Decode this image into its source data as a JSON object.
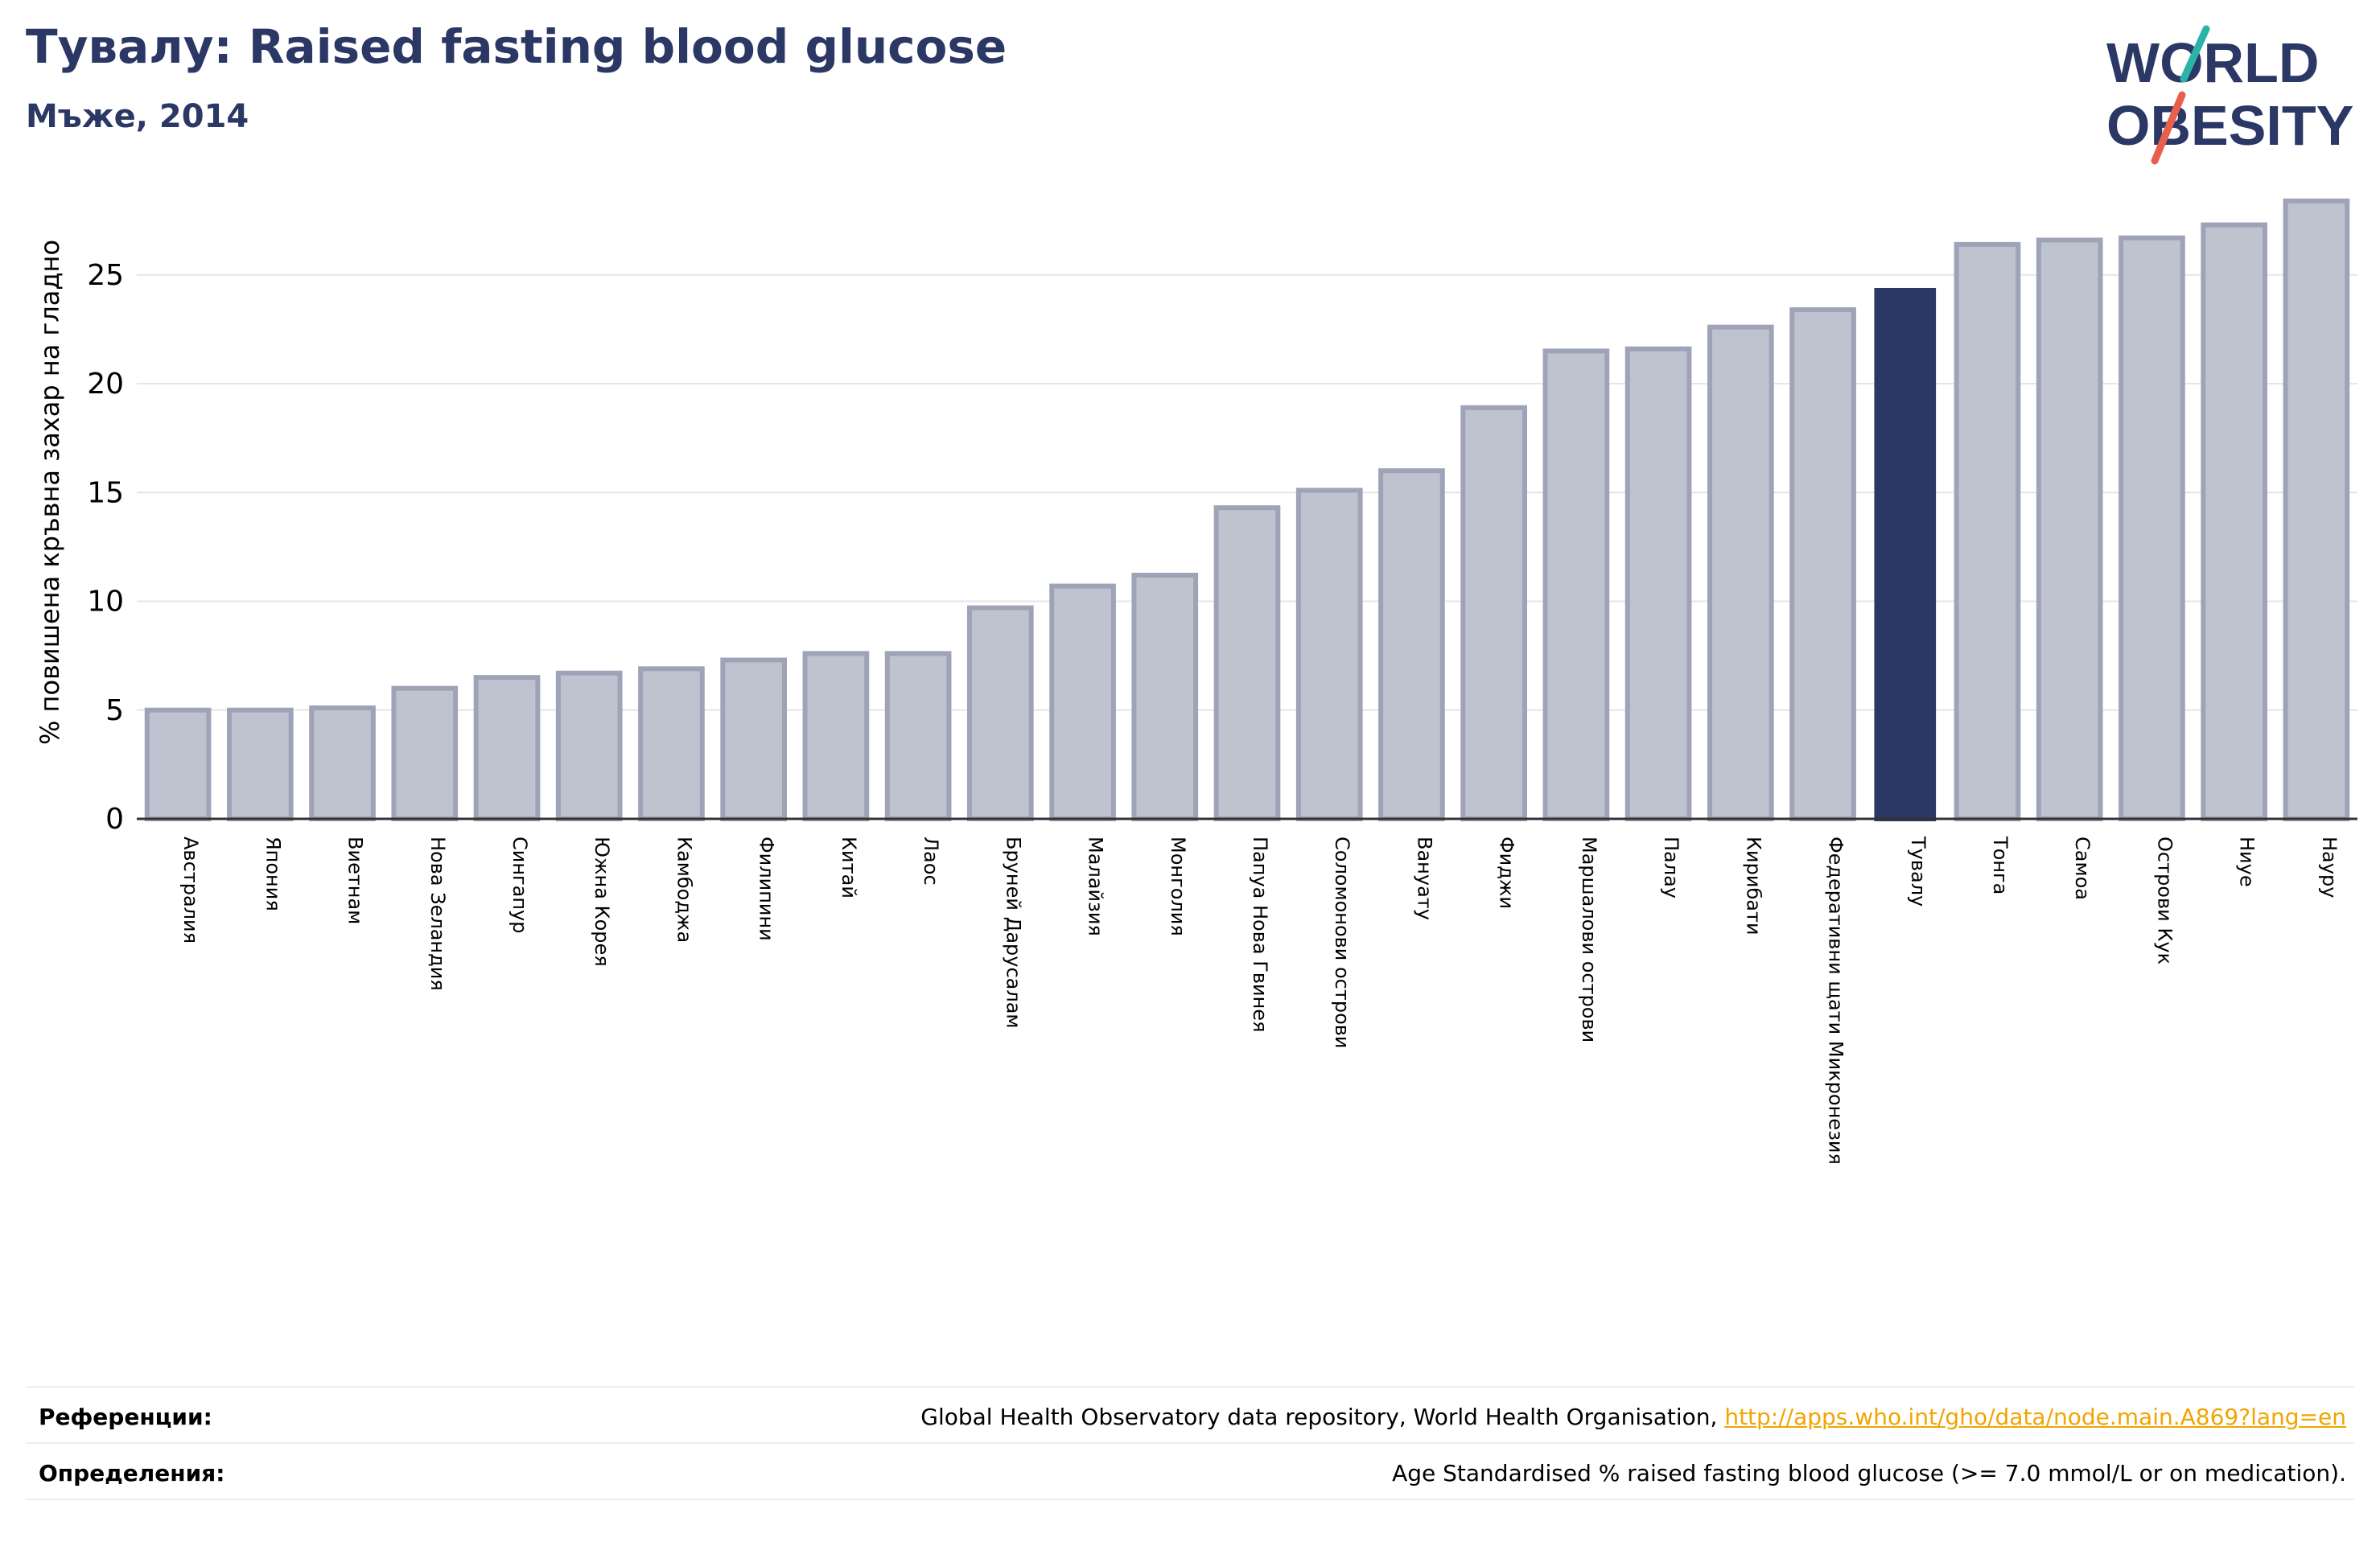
{
  "header": {
    "title": "Тувалу: Raised fasting blood glucose",
    "subtitle": "Мъже, 2014"
  },
  "logo": {
    "line1": "WORLD",
    "line2": "OBESITY",
    "colors": {
      "text": "#2b3764",
      "slash_teal": "#2ab3a8",
      "slash_red": "#e8604c"
    }
  },
  "colors": {
    "bar_default": "#bfc2cf",
    "bar_default_edge": "#9ea3b8",
    "bar_highlight": "#2b3764",
    "grid": "#e6e6e6",
    "axis": "#333333"
  },
  "chart_data": {
    "type": "bar",
    "title": "Тувалу: Raised fasting blood glucose",
    "subtitle": "Мъже, 2014",
    "xlabel": "",
    "ylabel": "% повишена кръвна захар на гладно",
    "ylim": [
      0,
      29
    ],
    "yticks": [
      0,
      5,
      10,
      15,
      20,
      25
    ],
    "grid": true,
    "highlight": "Тувалу",
    "categories": [
      "Австралия",
      "Япония",
      "Виетнам",
      "Нова Зеландия",
      "Сингапур",
      "Южна Корея",
      "Камбоджа",
      "Филипини",
      "Китай",
      "Лаос",
      "Бруней Дарусалам",
      "Малайзия",
      "Монголия",
      "Папуа Нова Гвинея",
      "Соломонови острови",
      "Вануату",
      "Фиджи",
      "Маршалови острови",
      "Палау",
      "Кирибати",
      "Федеративни щати Микронезия",
      "Тувалу",
      "Тонга",
      "Самоа",
      "Острови Кук",
      "Ниуе",
      "Науру"
    ],
    "values": [
      5.0,
      5.0,
      5.1,
      6.0,
      6.5,
      6.7,
      6.9,
      7.3,
      7.6,
      7.6,
      9.7,
      10.7,
      11.2,
      14.3,
      15.1,
      16.0,
      18.9,
      21.5,
      21.6,
      22.6,
      23.4,
      24.4,
      26.4,
      26.6,
      26.7,
      27.3,
      28.4
    ]
  },
  "footer": {
    "references_label": "Референции:",
    "references_text": "Global Health Observatory data repository, World Health Organisation, ",
    "references_link": "http://apps.who.int/gho/data/node.main.A869?lang=en",
    "definitions_label": "Определения:",
    "definitions_text": "Age Standardised % raised fasting blood glucose (>= 7.0 mmol/L or on medication)."
  }
}
